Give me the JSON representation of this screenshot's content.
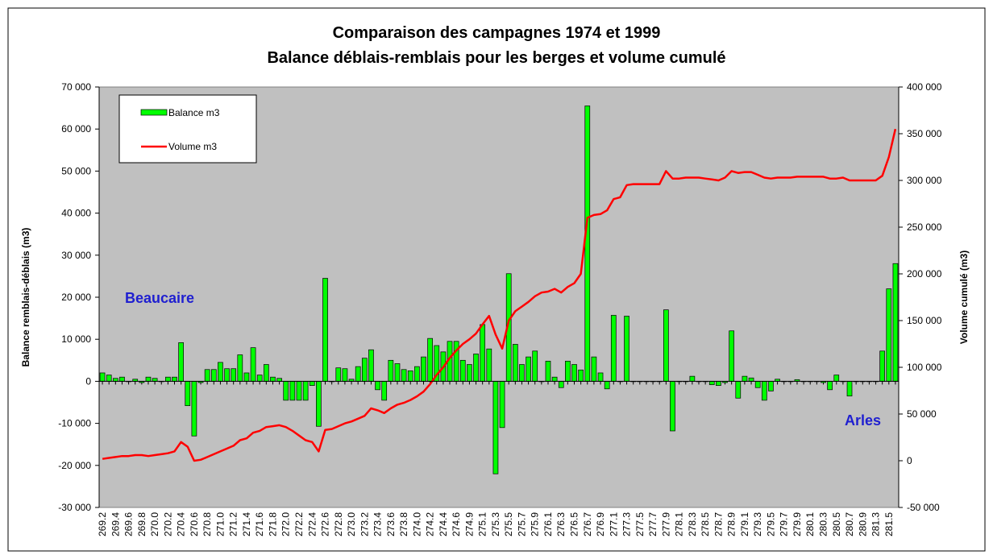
{
  "chart_data": {
    "type": "combo",
    "title": [
      "Comparaison des campagnes 1974 et 1999",
      "Balance déblais-remblais pour les berges et volume cumulé"
    ],
    "ylabel": "Balance remblais-déblais (m3)",
    "y2label": "Volume cumulé (m3)",
    "annotations": [
      "Beaucaire",
      "Arles"
    ],
    "legend": "upper left",
    "categories": [
      "269.2",
      null,
      "269.4",
      null,
      "269.6",
      null,
      "269.8",
      null,
      "270.0",
      null,
      "270.2",
      null,
      "270.4",
      null,
      "270.6",
      null,
      "270.8",
      null,
      "271.0",
      null,
      "271.2",
      null,
      "271.4",
      null,
      "271.6",
      null,
      "271.8",
      null,
      "272.0",
      null,
      "272.2",
      null,
      "272.4",
      null,
      "272.6",
      null,
      "272.8",
      null,
      "273.0",
      null,
      "273.2",
      null,
      "273.4",
      null,
      "273.6",
      null,
      "273.8",
      null,
      "274.0",
      null,
      "274.2",
      null,
      "274.4",
      null,
      "274.6",
      null,
      "274.9",
      null,
      "275.1",
      null,
      "275.3",
      null,
      "275.5",
      null,
      "275.7",
      null,
      "275.9",
      null,
      "276.1",
      null,
      "276.3",
      null,
      "276.5",
      null,
      "276.7",
      null,
      "276.9",
      null,
      "277.1",
      null,
      "277.3",
      null,
      "277.5",
      null,
      "277.7",
      null,
      "277.9",
      null,
      "278.1",
      null,
      "278.3",
      null,
      "278.5",
      null,
      "278.7",
      null,
      "278.9",
      null,
      "279.1",
      null,
      "279.3",
      null,
      "279.5",
      null,
      "279.7",
      null,
      "279.9",
      null,
      "280.1",
      null,
      "280.3",
      null,
      "280.5",
      null,
      "280.7",
      null,
      "280.9",
      null,
      "281.3",
      null,
      "281.5",
      null
    ],
    "series": [
      {
        "name": "Balance m3",
        "type": "bar",
        "color": "#00ff00",
        "values": [
          2000,
          1500,
          700,
          1000,
          0,
          500,
          -300,
          1000,
          700,
          0,
          1000,
          1000,
          9200,
          -5800,
          -13000,
          -300,
          2800,
          2800,
          4500,
          3000,
          3000,
          6300,
          2000,
          8000,
          1500,
          4000,
          1000,
          700,
          -4500,
          -4500,
          -4500,
          -4500,
          -1000,
          -10700,
          24500,
          0,
          3200,
          3000,
          500,
          3500,
          5500,
          7500,
          -2000,
          -4500,
          5000,
          4200,
          2800,
          2500,
          3500,
          5800,
          10200,
          8500,
          7000,
          9500,
          9500,
          5000,
          4000,
          6500,
          13500,
          7700,
          -22000,
          -11000,
          25600,
          8800,
          4000,
          5800,
          7200,
          0,
          4800,
          1000,
          -1500,
          4800,
          4000,
          2700,
          65500,
          5800,
          2000,
          -1800,
          15700,
          0,
          15500,
          0,
          0,
          0,
          0,
          0,
          17000,
          -11800,
          0,
          0,
          1200,
          0,
          0,
          -800,
          -1000,
          -300,
          12000,
          -4000,
          1200,
          800,
          -1500,
          -4500,
          -2300,
          500,
          0,
          0,
          400,
          0,
          0,
          0,
          -300,
          -2000,
          1500,
          0,
          -3500,
          0,
          0,
          0,
          0,
          7200,
          22000,
          28000
        ]
      },
      {
        "name": "Volume m3",
        "type": "line",
        "axis": "y2",
        "color": "#ff0000",
        "values": [
          2000,
          3000,
          4000,
          5000,
          5000,
          6000,
          6000,
          5000,
          6000,
          7000,
          8000,
          10000,
          20000,
          15000,
          0,
          1000,
          4000,
          7000,
          10000,
          13000,
          16000,
          22000,
          24000,
          30000,
          32000,
          36000,
          37000,
          38000,
          36000,
          32000,
          27000,
          22000,
          20000,
          10000,
          33000,
          34000,
          37000,
          40000,
          42000,
          45000,
          48000,
          56000,
          54000,
          51000,
          56000,
          60000,
          62000,
          65000,
          69000,
          74000,
          82000,
          92000,
          100000,
          110000,
          118000,
          125000,
          130000,
          136000,
          146000,
          155000,
          135000,
          120000,
          150000,
          160000,
          165000,
          170000,
          176000,
          180000,
          181000,
          184000,
          180000,
          186000,
          190000,
          200000,
          260000,
          263000,
          264000,
          268000,
          280000,
          282000,
          295000,
          296000,
          296000,
          296000,
          296000,
          296000,
          310000,
          302000,
          302000,
          303000,
          303000,
          303000,
          302000,
          301000,
          300000,
          303000,
          310000,
          308000,
          309000,
          309000,
          306000,
          303000,
          302000,
          303000,
          303000,
          303000,
          304000,
          304000,
          304000,
          304000,
          304000,
          302000,
          302000,
          303000,
          300000,
          300000,
          300000,
          300000,
          300000,
          305000,
          325000,
          355000
        ]
      }
    ],
    "ylim": [
      -30000,
      70000
    ],
    "yticks": [
      {
        "value": -30000,
        "label": "-30 000"
      },
      {
        "value": -20000,
        "label": "-20 000"
      },
      {
        "value": -10000,
        "label": "-10 000"
      },
      0,
      {
        "value": 10000,
        "label": "10 000"
      },
      {
        "value": 20000,
        "label": "20 000"
      },
      {
        "value": 30000,
        "label": "30 000"
      },
      {
        "value": 40000,
        "label": "40 000"
      },
      {
        "value": 50000,
        "label": "50 000"
      },
      {
        "value": 60000,
        "label": "60 000"
      },
      {
        "value": 70000,
        "label": "70 000"
      }
    ],
    "y2lim": [
      -50000,
      400000
    ],
    "y2ticks": [
      {
        "value": -50000,
        "label": "-50 000"
      },
      0,
      {
        "value": 50000,
        "label": "50 000"
      },
      {
        "value": 100000,
        "label": "100 000"
      },
      {
        "value": 150000,
        "label": "150 000"
      },
      {
        "value": 200000,
        "label": "200 000"
      },
      {
        "value": 250000,
        "label": "250 000"
      },
      {
        "value": 300000,
        "label": "300 000"
      },
      {
        "value": 350000,
        "label": "350 000"
      },
      {
        "value": 400000,
        "label": "400 000"
      }
    ],
    "grid": false
  }
}
